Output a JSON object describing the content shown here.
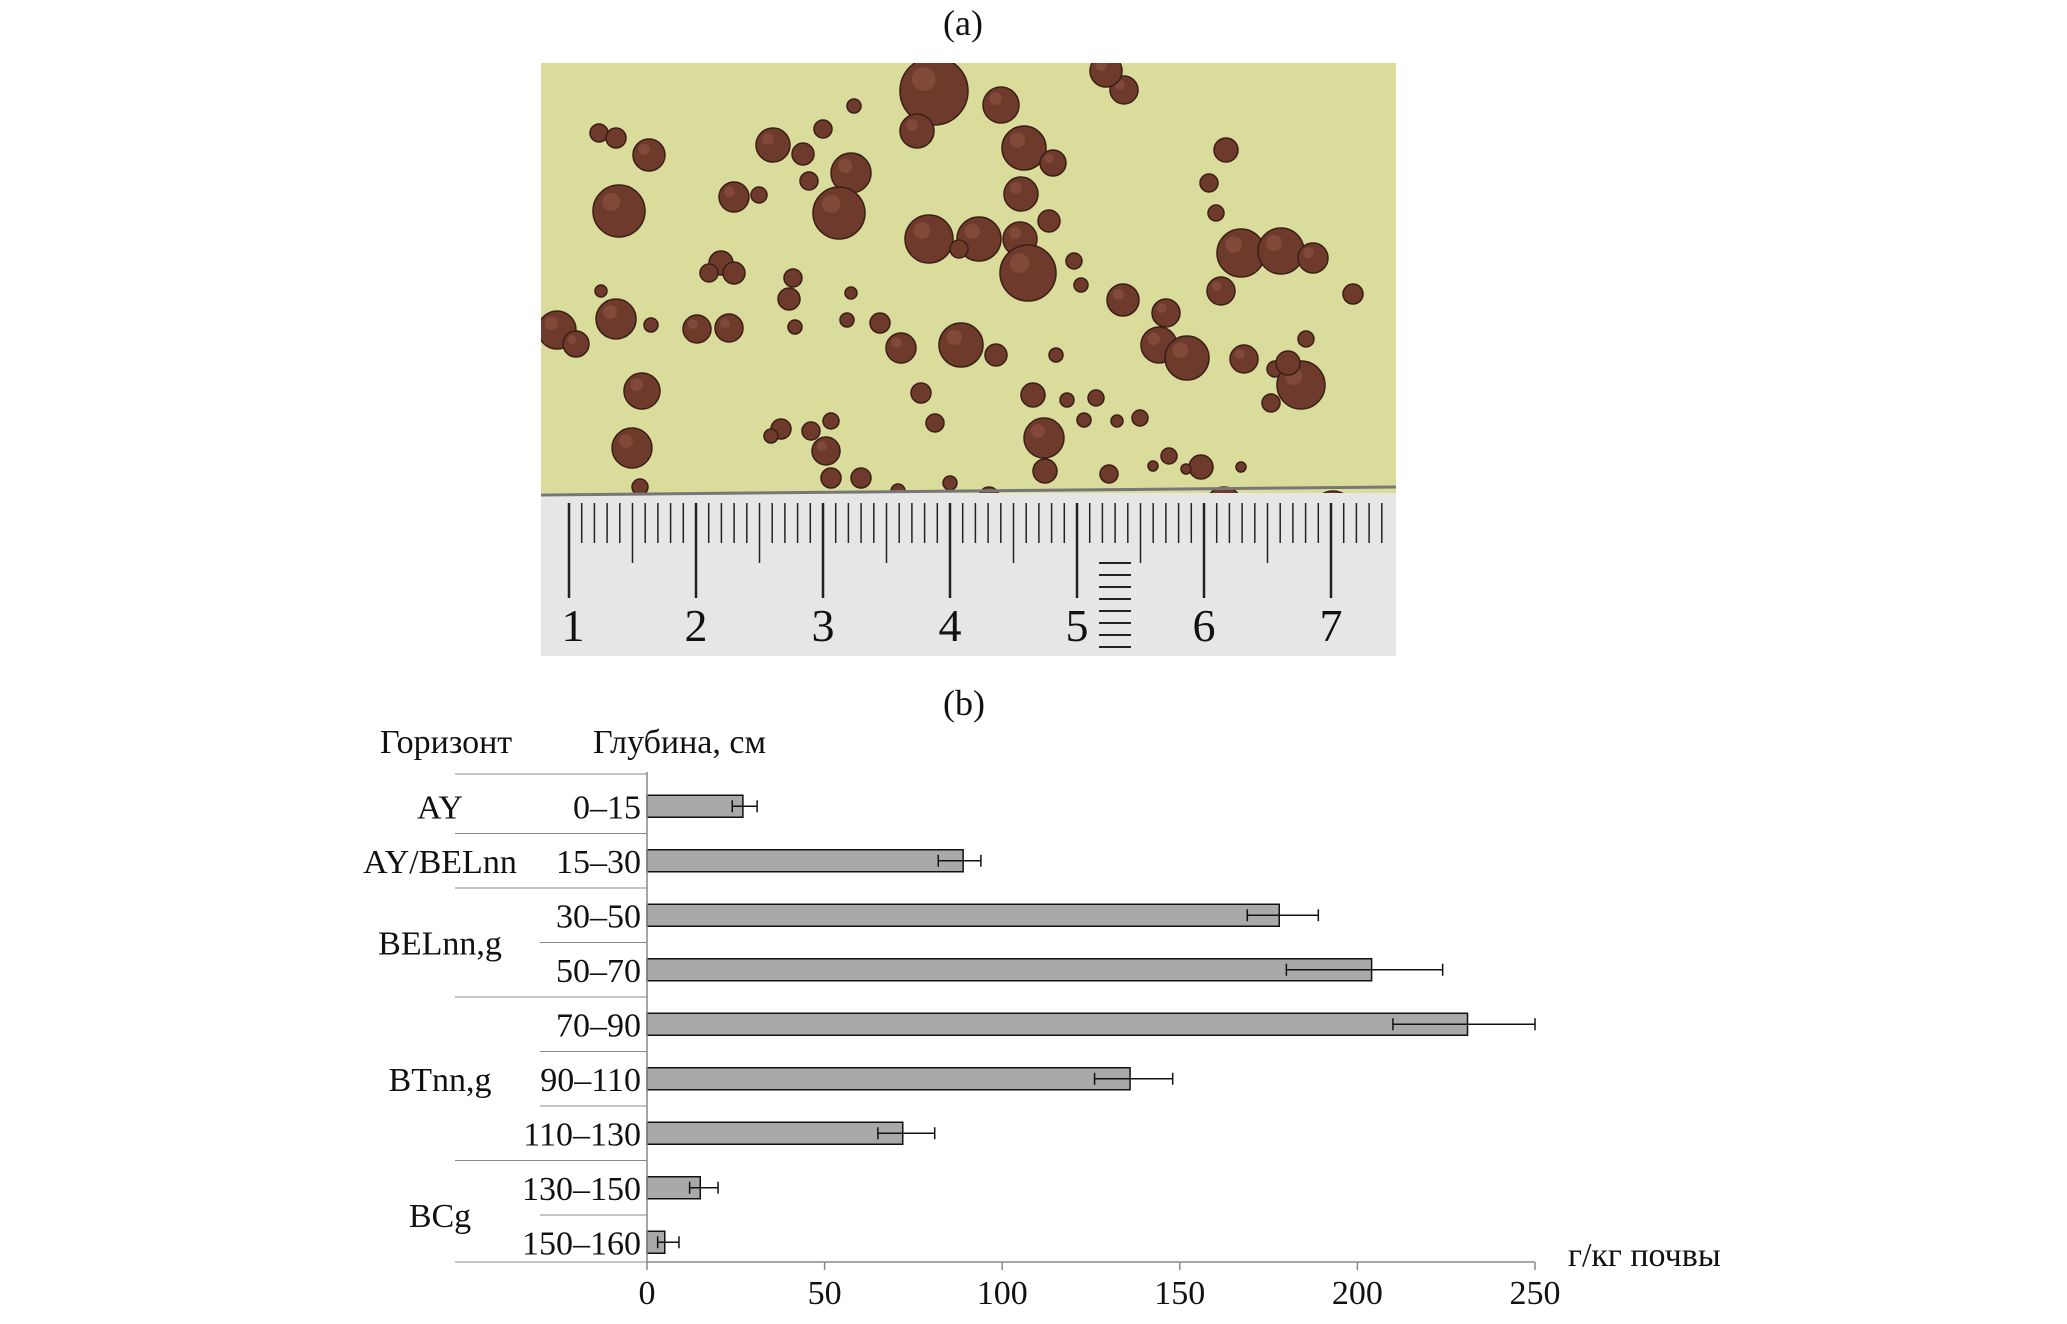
{
  "panels": {
    "a_label": "(a)",
    "b_label": "(b)"
  },
  "photo": {
    "ruler_numbers": [
      "1",
      "2",
      "3",
      "4",
      "5",
      "6",
      "7"
    ],
    "colors": {
      "background": "#d9dc9a",
      "nodule": "#6e3a2c",
      "ruler": "#e6e6e6"
    }
  },
  "chart_data": {
    "type": "bar",
    "orientation": "horizontal",
    "column_header_left": "Горизонт",
    "column_header_right": "Глубина, см",
    "xlabel": "г/кг почвы",
    "xlim": [
      0,
      250
    ],
    "xticks": [
      0,
      50,
      100,
      150,
      200,
      250
    ],
    "categories": [
      "0–15",
      "15–30",
      "30–50",
      "50–70",
      "70–90",
      "90–110",
      "110–130",
      "130–150",
      "150–160"
    ],
    "horizons": [
      {
        "name": "AY",
        "rows": [
          0
        ]
      },
      {
        "name": "AY/BELnn",
        "rows": [
          1
        ]
      },
      {
        "name": "BELnn,g",
        "rows": [
          2,
          3
        ]
      },
      {
        "name": "BTnn,g",
        "rows": [
          4,
          5,
          6
        ]
      },
      {
        "name": "BCg",
        "rows": [
          7,
          8
        ]
      }
    ],
    "values": [
      27,
      89,
      178,
      204,
      231,
      136,
      72,
      15,
      5
    ],
    "error_low": [
      24,
      82,
      169,
      180,
      210,
      126,
      65,
      12,
      3
    ],
    "error_high": [
      31,
      94,
      189,
      224,
      250,
      148,
      81,
      20,
      9
    ],
    "bar_color": "#a9a9a9",
    "grid": false,
    "legend": "none"
  }
}
